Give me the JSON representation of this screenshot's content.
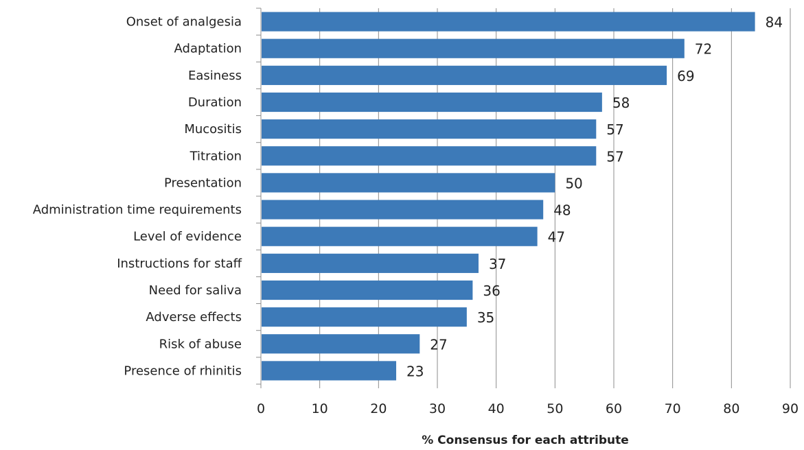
{
  "chart_data": {
    "type": "bar",
    "orientation": "horizontal",
    "categories": [
      "Onset of analgesia",
      "Adaptation",
      "Easiness",
      "Duration",
      "Mucositis",
      "Titration",
      "Presentation",
      "Administration time requirements",
      "Level of evidence",
      "Instructions for staff",
      "Need for saliva",
      "Adverse effects",
      "Risk of abuse",
      "Presence of rhinitis"
    ],
    "values": [
      84,
      72,
      69,
      58,
      57,
      57,
      50,
      48,
      47,
      37,
      36,
      35,
      27,
      23
    ],
    "value_labels": [
      "84",
      "72",
      "69",
      "58",
      "57",
      "57",
      "50",
      "48",
      "47",
      "37",
      "36",
      "35",
      "27",
      "23"
    ],
    "xlabel": "% Consensus for each attribute",
    "ylabel": "",
    "xlim": [
      0,
      90
    ],
    "xticks": [
      "0",
      "10",
      "20",
      "30",
      "40",
      "50",
      "60",
      "70",
      "80",
      "90"
    ],
    "grid": "vertical",
    "legend": "none",
    "bar_color": "#3d7ab8",
    "grid_color": "#8c8c8c"
  }
}
